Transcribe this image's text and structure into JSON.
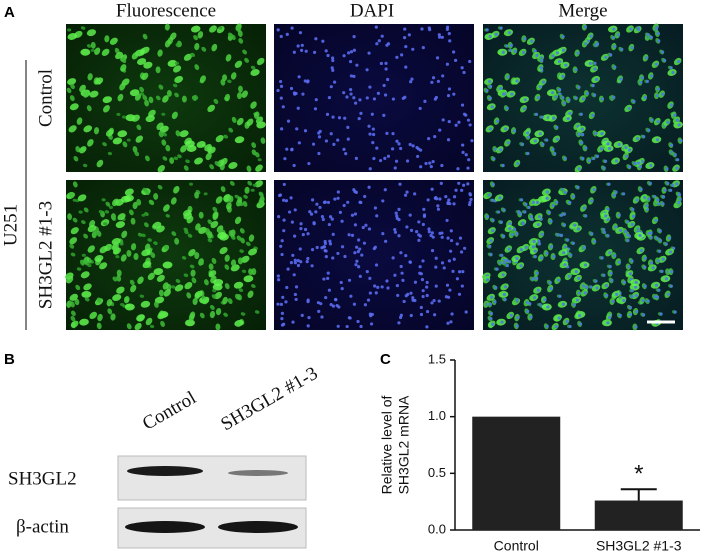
{
  "panel_labels": [
    "A",
    "B",
    "C"
  ],
  "panel_a": {
    "columns": [
      "Fluorescence",
      "DAPI",
      "Merge"
    ],
    "rows": [
      "Control",
      "SH3GL2 #1-3"
    ],
    "group": "U251"
  },
  "panel_b": {
    "lanes": [
      "Control",
      "SH3GL2 #1-3"
    ],
    "rows": [
      "SH3GL2",
      "β-actin"
    ]
  },
  "chart_data": {
    "type": "bar",
    "categories": [
      "Control",
      "SH3GL2 #1-3"
    ],
    "values": [
      1.0,
      0.26
    ],
    "errors": [
      null,
      0.1
    ],
    "color": "#222222",
    "ylabel": [
      "Relative level of",
      "SH3GL2 mRNA"
    ],
    "annotation": "*",
    "ylim": [
      0,
      1.5
    ],
    "yticks": [
      {
        "value": 0,
        "label": "0.0"
      },
      0.5,
      {
        "value": 1,
        "label": "1.0"
      },
      1.5
    ]
  }
}
